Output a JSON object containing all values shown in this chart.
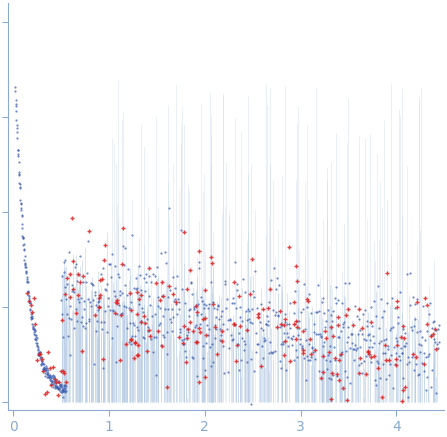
{
  "title": "",
  "xlabel": "",
  "ylabel": "",
  "xlim": [
    -0.05,
    4.5
  ],
  "ylim": [
    -0.02,
    1.05
  ],
  "background_color": "#ffffff",
  "plot_bg_color": "#ffffff",
  "spine_color": "#8aaad0",
  "tick_color": "#8aaad0",
  "tick_label_color": "#8aaad0",
  "xticks": [
    0,
    1,
    2,
    3,
    4
  ],
  "blue_dot_color": "#4060b0",
  "red_dot_color": "#dd2020",
  "vline_color": "#b8cce4",
  "vline_alpha": 0.7
}
